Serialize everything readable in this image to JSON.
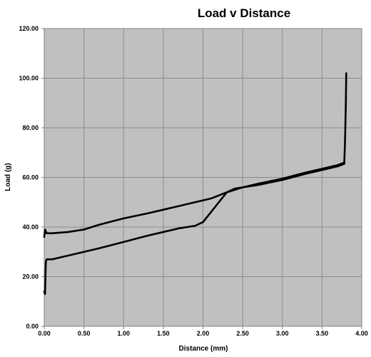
{
  "chart_data": {
    "type": "line",
    "title": "Load v Distance",
    "xlabel": "Distance (mm)",
    "ylabel": "Load (g)",
    "xlim": [
      0,
      4
    ],
    "ylim": [
      0,
      120
    ],
    "x_ticks": [
      "0.00",
      "0.50",
      "1.00",
      "1.50",
      "2.00",
      "2.50",
      "3.00",
      "3.50",
      "4.00"
    ],
    "y_ticks": [
      "0.00",
      "20.00",
      "40.00",
      "60.00",
      "80.00",
      "100.00",
      "120.00"
    ],
    "grid": true,
    "legend": "none",
    "plot_background": "#c0c0c0",
    "line_color": "#000000",
    "series": [
      {
        "x": [
          0.0,
          0.01,
          0.02,
          0.03,
          0.05,
          0.1,
          0.3,
          0.5,
          0.7,
          1.0,
          1.3,
          1.5,
          1.7,
          1.9,
          2.0,
          2.1,
          2.2,
          2.3,
          2.4,
          2.5,
          2.7,
          3.0,
          3.3,
          3.5,
          3.7,
          3.78
        ],
        "y": [
          14,
          13,
          26,
          27,
          27,
          27,
          28.5,
          30,
          31.5,
          34,
          36.5,
          38,
          39.5,
          40.5,
          42,
          46,
          50,
          54,
          55.5,
          56,
          57,
          59,
          61.5,
          63,
          64.5,
          65.5
        ]
      },
      {
        "x": [
          3.78,
          3.7,
          3.5,
          3.3,
          3.0,
          2.7,
          2.5,
          2.3,
          2.1,
          1.9,
          1.7,
          1.5,
          1.3,
          1.0,
          0.7,
          0.5,
          0.3,
          0.1,
          0.03,
          0.01,
          0.0
        ],
        "y": [
          66,
          65,
          63.5,
          62,
          59.5,
          57.5,
          56,
          54,
          51.5,
          50,
          48.5,
          47,
          45.5,
          43.5,
          41,
          39,
          38,
          37.5,
          37.5,
          39,
          36
        ]
      },
      {
        "x": [
          3.78,
          3.79,
          3.8,
          3.805
        ],
        "y": [
          65.5,
          75,
          90,
          102
        ]
      }
    ]
  }
}
